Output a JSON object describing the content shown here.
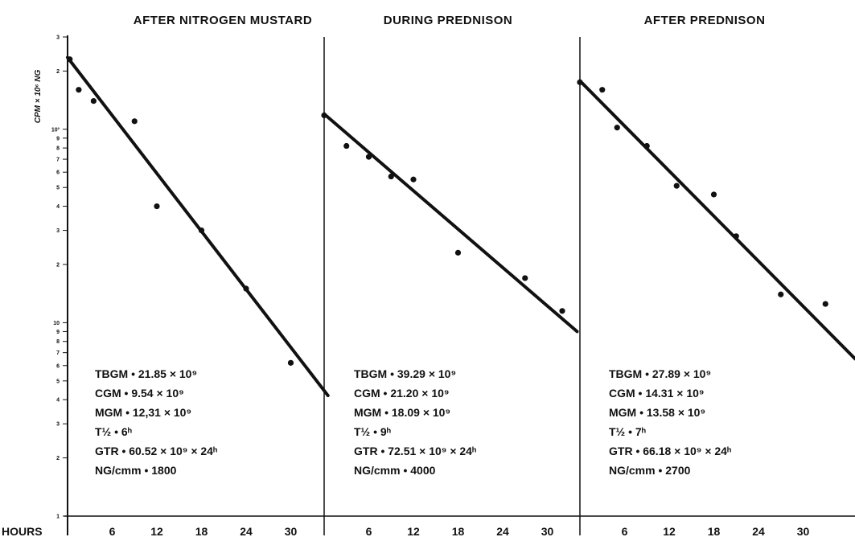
{
  "chart_data": {
    "type": "scatter",
    "y_axis_label": "CPM × 10⁶ NG",
    "x_axis_label": "HOURS",
    "y_scale": "log",
    "y_decade_labels": [
      "3",
      "2",
      "10²",
      "9",
      "8",
      "7",
      "6",
      "5",
      "4",
      "3",
      "2",
      "10",
      "9",
      "8",
      "7",
      "6",
      "5",
      "4",
      "3",
      "2",
      "1"
    ],
    "x_tick_labels": [
      "6",
      "12",
      "18",
      "24",
      "30"
    ],
    "panels": [
      {
        "title": "AFTER NITROGEN MUSTARD",
        "points": [
          [
            0.3,
            230
          ],
          [
            1.5,
            160
          ],
          [
            3.5,
            140
          ],
          [
            9,
            110
          ],
          [
            12,
            40
          ],
          [
            18,
            30
          ],
          [
            24,
            15
          ],
          [
            30,
            6.2
          ]
        ],
        "fit_line": [
          [
            0,
            235
          ],
          [
            35,
            4.2
          ]
        ],
        "stats": [
          "TBGM • 21.85 × 10⁹",
          "CGM • 9.54 × 10⁹",
          "MGM • 12,31 × 10⁹",
          "T½ • 6ʰ",
          "GTR • 60.52 × 10⁹ × 24ʰ",
          "NG/cmm • 1800"
        ]
      },
      {
        "title": "DURING PREDNISON",
        "points": [
          [
            0,
            118
          ],
          [
            3,
            82
          ],
          [
            6,
            72
          ],
          [
            9,
            57
          ],
          [
            12,
            55
          ],
          [
            18,
            23
          ],
          [
            27,
            17
          ],
          [
            32,
            11.5
          ]
        ],
        "fit_line": [
          [
            0,
            120
          ],
          [
            34,
            9
          ]
        ],
        "stats": [
          "TBGM • 39.29 × 10⁹",
          "CGM • 21.20 × 10⁹",
          "MGM • 18.09 × 10⁹",
          "T½ • 9ʰ",
          "GTR • 72.51 × 10⁹ × 24ʰ",
          "NG/cmm • 4000"
        ]
      },
      {
        "title": "AFTER PREDNISON",
        "points": [
          [
            0,
            175
          ],
          [
            3,
            160
          ],
          [
            5,
            102
          ],
          [
            9,
            82
          ],
          [
            13,
            51
          ],
          [
            18,
            46
          ],
          [
            21,
            28
          ],
          [
            27,
            14
          ],
          [
            33,
            12.5
          ]
        ],
        "fit_line": [
          [
            0,
            178
          ],
          [
            37,
            6.5
          ]
        ],
        "stats": [
          "TBGM • 27.89 × 10⁹",
          "CGM • 14.31 × 10⁹",
          "MGM • 13.58 × 10⁹",
          "T½ • 7ʰ",
          "GTR • 66.18 × 10⁹ × 24ʰ",
          "NG/cmm • 2700"
        ]
      }
    ]
  }
}
